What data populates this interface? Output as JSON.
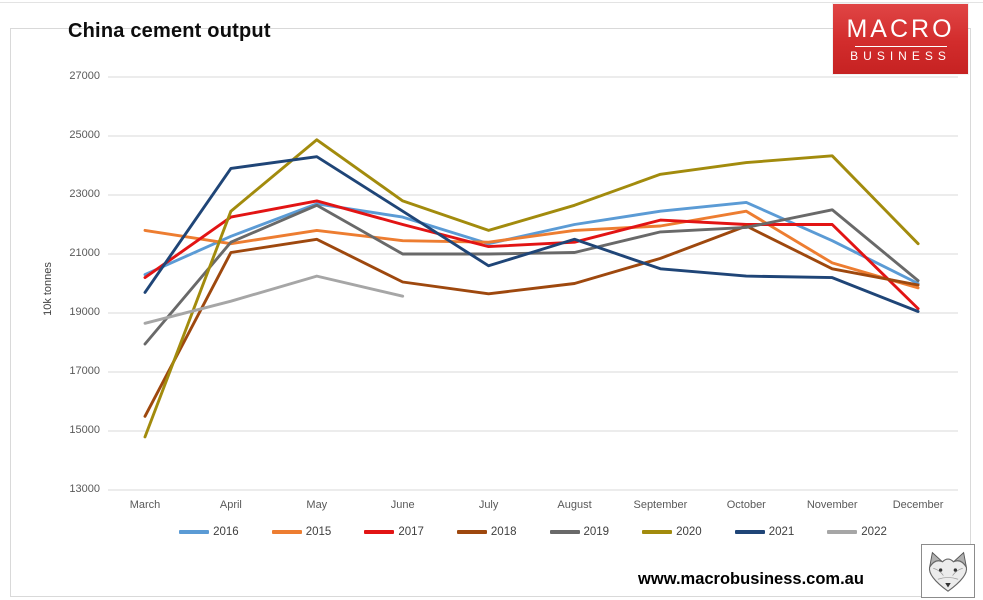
{
  "page": {
    "title": "China cement output",
    "footer_url": "www.macrobusiness.com.au"
  },
  "logo": {
    "line1": "MACRO",
    "line2": "BUSINESS"
  },
  "colors": {
    "grid": "#d9d9d9",
    "axis_text": "#595959",
    "logo_red": "#d22c2c",
    "frame_border": "#d9d9d9"
  },
  "chart_data": {
    "type": "line",
    "title": "China cement output",
    "xlabel": "",
    "ylabel": "10k tonnes",
    "ylim": [
      13000,
      27000
    ],
    "yticks": [
      27000,
      25000,
      23000,
      21000,
      19000,
      17000,
      15000,
      13000
    ],
    "grid": "horizontal-only",
    "legend_position": "bottom",
    "categories": [
      "March",
      "April",
      "May",
      "June",
      "July",
      "August",
      "September",
      "October",
      "November",
      "December"
    ],
    "series": [
      {
        "name": "2016",
        "color": "#5B9BD5",
        "values": [
          20300,
          21600,
          22700,
          22250,
          21350,
          22000,
          22450,
          22750,
          21450,
          20000
        ]
      },
      {
        "name": "2015",
        "color": "#ED7D31",
        "values": [
          21800,
          21350,
          21800,
          21450,
          21400,
          21800,
          21950,
          22450,
          20700,
          19850
        ]
      },
      {
        "name": "2017",
        "color": "#E21414",
        "values": [
          20200,
          22250,
          22800,
          22000,
          21250,
          21400,
          22150,
          22000,
          22000,
          19150
        ]
      },
      {
        "name": "2018",
        "color": "#9E480E",
        "values": [
          15500,
          21050,
          21500,
          20050,
          19650,
          20000,
          20850,
          21950,
          20500,
          19950
        ]
      },
      {
        "name": "2019",
        "color": "#696969",
        "values": [
          17950,
          21400,
          22650,
          21000,
          21000,
          21050,
          21750,
          21900,
          22500,
          20100
        ]
      },
      {
        "name": "2020",
        "color": "#A28B0D",
        "values": [
          14800,
          22450,
          24870,
          22800,
          21800,
          22650,
          23700,
          24100,
          24330,
          21350
        ]
      },
      {
        "name": "2021",
        "color": "#1F4577",
        "values": [
          19700,
          23900,
          24300,
          22450,
          20600,
          21500,
          20500,
          20250,
          20200,
          19050
        ]
      },
      {
        "name": "2022",
        "color": "#A6A6A6",
        "values": [
          18650,
          19400,
          20250,
          19570,
          null,
          null,
          null,
          null,
          null,
          null
        ]
      }
    ]
  }
}
